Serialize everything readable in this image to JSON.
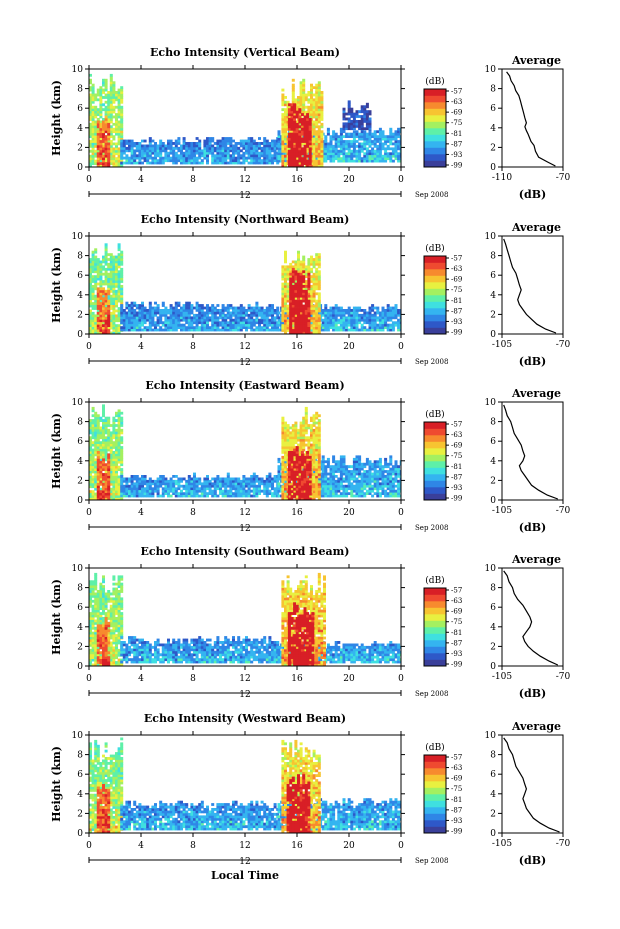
{
  "chart_data": [
    {
      "type": "heatmap",
      "title": "Echo Intensity (Vertical Beam)",
      "ylabel": "Height (km)",
      "xticks": [
        "0",
        "4",
        "8",
        "12",
        "16",
        "20",
        "0"
      ],
      "xlim": [
        0,
        24
      ],
      "yticks": [
        "0",
        "2",
        "4",
        "6",
        "8",
        "10"
      ],
      "ylim": [
        0,
        10
      ],
      "date_marker": "12",
      "date_label": "Sep 2008",
      "colorbar": {
        "label": "(dB)",
        "ticks": [
          "-57",
          "-63",
          "-69",
          "-75",
          "-81",
          "-87",
          "-93",
          "-99"
        ],
        "range": [
          -100,
          -55
        ]
      },
      "average": {
        "title": "Average",
        "xlabel": "(dB)",
        "xlim": [
          -110,
          -70
        ],
        "xticks": [
          "-110",
          "-70"
        ],
        "yticks": [
          "0",
          "2",
          "4",
          "6",
          "8",
          "10"
        ],
        "profile": [
          [
            -75,
            0.1
          ],
          [
            -80,
            0.5
          ],
          [
            -86,
            1.0
          ],
          [
            -88,
            1.6
          ],
          [
            -89,
            2.2
          ],
          [
            -91,
            2.6
          ],
          [
            -92,
            3.0
          ],
          [
            -93,
            3.4
          ],
          [
            -94,
            3.7
          ],
          [
            -95,
            4.1
          ],
          [
            -94,
            4.5
          ],
          [
            -95,
            5.0
          ],
          [
            -96,
            5.6
          ],
          [
            -97,
            6.2
          ],
          [
            -98,
            6.8
          ],
          [
            -99,
            7.3
          ],
          [
            -101,
            7.8
          ],
          [
            -102,
            8.3
          ],
          [
            -104,
            8.8
          ],
          [
            -105,
            9.3
          ],
          [
            -107,
            9.7
          ]
        ]
      },
      "features": [
        {
          "x0": 0,
          "x1": 2.6,
          "h0": 0,
          "h1": 9.6,
          "level": -78
        },
        {
          "x0": 0.6,
          "x1": 1.5,
          "h0": 0,
          "h1": 5.5,
          "level": -64
        },
        {
          "x0": 2.4,
          "x1": 14.5,
          "h0": 0.3,
          "h1": 3.0,
          "level": -92
        },
        {
          "x0": 14.5,
          "x1": 24,
          "h0": 0.5,
          "h1": 4.0,
          "level": -90
        },
        {
          "x0": 14.8,
          "x1": 17.8,
          "h0": 0,
          "h1": 9.2,
          "level": -72
        },
        {
          "x0": 15.3,
          "x1": 17.0,
          "h0": 0,
          "h1": 6.5,
          "level": -58
        },
        {
          "x0": 19.5,
          "x1": 21.5,
          "h0": 3.8,
          "h1": 7.0,
          "level": -97
        }
      ]
    },
    {
      "type": "heatmap",
      "title": "Echo Intensity (Northward Beam)",
      "ylabel": "Height (km)",
      "xticks": [
        "0",
        "4",
        "8",
        "12",
        "16",
        "20",
        "0"
      ],
      "xlim": [
        0,
        24
      ],
      "yticks": [
        "0",
        "2",
        "4",
        "6",
        "8",
        "10"
      ],
      "ylim": [
        0,
        10
      ],
      "date_marker": "12",
      "date_label": "Sep 2008",
      "colorbar": {
        "label": "(dB)",
        "ticks": [
          "-57",
          "-63",
          "-69",
          "-75",
          "-81",
          "-87",
          "-93",
          "-99"
        ],
        "range": [
          -100,
          -55
        ]
      },
      "average": {
        "title": "Average",
        "xlabel": "(dB)",
        "xlim": [
          -105,
          -70
        ],
        "xticks": [
          "-105",
          "-70"
        ],
        "yticks": [
          "0",
          "2",
          "4",
          "6",
          "8",
          "10"
        ],
        "profile": [
          [
            -74,
            0.1
          ],
          [
            -80,
            0.5
          ],
          [
            -85,
            1.0
          ],
          [
            -88,
            1.5
          ],
          [
            -91,
            2.0
          ],
          [
            -93,
            2.5
          ],
          [
            -95,
            3.0
          ],
          [
            -96,
            3.5
          ],
          [
            -95,
            4.0
          ],
          [
            -94,
            4.5
          ],
          [
            -95,
            5.0
          ],
          [
            -96,
            5.6
          ],
          [
            -97,
            6.2
          ],
          [
            -99,
            6.8
          ],
          [
            -100,
            7.4
          ],
          [
            -101,
            8.0
          ],
          [
            -102,
            8.6
          ],
          [
            -103,
            9.2
          ],
          [
            -104,
            9.7
          ]
        ]
      },
      "features": [
        {
          "x0": 0,
          "x1": 2.6,
          "h0": 0,
          "h1": 9.6,
          "level": -80
        },
        {
          "x0": 0.6,
          "x1": 1.5,
          "h0": 0,
          "h1": 5.0,
          "level": -65
        },
        {
          "x0": 2.4,
          "x1": 14.5,
          "h0": 0.3,
          "h1": 3.3,
          "level": -92
        },
        {
          "x0": 14.5,
          "x1": 24,
          "h0": 0.3,
          "h1": 3.0,
          "level": -91
        },
        {
          "x0": 14.8,
          "x1": 17.6,
          "h0": 0,
          "h1": 9.0,
          "level": -73
        },
        {
          "x0": 15.4,
          "x1": 16.9,
          "h0": 0,
          "h1": 6.8,
          "level": -58
        }
      ]
    },
    {
      "type": "heatmap",
      "title": "Echo Intensity (Eastward Beam)",
      "ylabel": "Height (km)",
      "xticks": [
        "0",
        "4",
        "8",
        "12",
        "16",
        "20",
        "0"
      ],
      "xlim": [
        0,
        24
      ],
      "yticks": [
        "0",
        "2",
        "4",
        "6",
        "8",
        "10"
      ],
      "ylim": [
        0,
        10
      ],
      "date_marker": "12",
      "date_label": "Sep 2008",
      "colorbar": {
        "label": "(dB)",
        "ticks": [
          "-57",
          "-63",
          "-69",
          "-75",
          "-81",
          "-87",
          "-93",
          "-99"
        ],
        "range": [
          -100,
          -55
        ]
      },
      "average": {
        "title": "Average",
        "xlabel": "(dB)",
        "xlim": [
          -105,
          -70
        ],
        "xticks": [
          "-105",
          "-70"
        ],
        "yticks": [
          "0",
          "2",
          "4",
          "6",
          "8",
          "10"
        ],
        "profile": [
          [
            -73,
            0.1
          ],
          [
            -79,
            0.5
          ],
          [
            -84,
            1.0
          ],
          [
            -88,
            1.5
          ],
          [
            -90,
            2.0
          ],
          [
            -92,
            2.5
          ],
          [
            -94,
            3.0
          ],
          [
            -95,
            3.5
          ],
          [
            -93,
            4.0
          ],
          [
            -92,
            4.5
          ],
          [
            -93,
            5.0
          ],
          [
            -94,
            5.6
          ],
          [
            -96,
            6.2
          ],
          [
            -98,
            6.8
          ],
          [
            -99,
            7.4
          ],
          [
            -100,
            8.0
          ],
          [
            -102,
            8.6
          ],
          [
            -103,
            9.2
          ],
          [
            -104,
            9.7
          ]
        ]
      },
      "features": [
        {
          "x0": 0,
          "x1": 2.6,
          "h0": 0,
          "h1": 9.6,
          "level": -79
        },
        {
          "x0": 0.6,
          "x1": 1.5,
          "h0": 0,
          "h1": 5.2,
          "level": -64
        },
        {
          "x0": 2.4,
          "x1": 14.5,
          "h0": 0.3,
          "h1": 2.6,
          "level": -91
        },
        {
          "x0": 14.5,
          "x1": 24,
          "h0": 0.3,
          "h1": 4.5,
          "level": -90
        },
        {
          "x0": 14.8,
          "x1": 17.6,
          "h0": 0,
          "h1": 9.5,
          "level": -72
        },
        {
          "x0": 15.3,
          "x1": 17.0,
          "h0": 0,
          "h1": 5.5,
          "level": -58
        }
      ]
    },
    {
      "type": "heatmap",
      "title": "Echo Intensity (Southward Beam)",
      "ylabel": "Height (km)",
      "xticks": [
        "0",
        "4",
        "8",
        "12",
        "16",
        "20",
        "0"
      ],
      "xlim": [
        0,
        24
      ],
      "yticks": [
        "0",
        "2",
        "4",
        "6",
        "8",
        "10"
      ],
      "ylim": [
        0,
        10
      ],
      "date_marker": "12",
      "date_label": "Sep 2008",
      "colorbar": {
        "label": "(dB)",
        "ticks": [
          "-57",
          "-63",
          "-69",
          "-75",
          "-81",
          "-87",
          "-93",
          "-99"
        ],
        "range": [
          -100,
          -55
        ]
      },
      "average": {
        "title": "Average",
        "xlabel": "(dB)",
        "xlim": [
          -105,
          -70
        ],
        "xticks": [
          "-105",
          "-70"
        ],
        "yticks": [
          "0",
          "2",
          "4",
          "6",
          "8",
          "10"
        ],
        "profile": [
          [
            -73,
            0.1
          ],
          [
            -78,
            0.5
          ],
          [
            -83,
            1.0
          ],
          [
            -87,
            1.5
          ],
          [
            -90,
            2.0
          ],
          [
            -92,
            2.5
          ],
          [
            -93,
            3.0
          ],
          [
            -91,
            3.5
          ],
          [
            -89,
            4.0
          ],
          [
            -88,
            4.5
          ],
          [
            -89,
            5.0
          ],
          [
            -91,
            5.6
          ],
          [
            -93,
            6.2
          ],
          [
            -96,
            6.8
          ],
          [
            -98,
            7.4
          ],
          [
            -99,
            8.0
          ],
          [
            -101,
            8.6
          ],
          [
            -102,
            9.2
          ],
          [
            -104,
            9.7
          ]
        ]
      },
      "features": [
        {
          "x0": 0,
          "x1": 2.6,
          "h0": 0,
          "h1": 9.6,
          "level": -79
        },
        {
          "x0": 0.6,
          "x1": 1.5,
          "h0": 0,
          "h1": 5.0,
          "level": -64
        },
        {
          "x0": 2.4,
          "x1": 14.5,
          "h0": 0.3,
          "h1": 3.0,
          "level": -91
        },
        {
          "x0": 14.5,
          "x1": 24,
          "h0": 0.3,
          "h1": 2.4,
          "level": -90
        },
        {
          "x0": 14.8,
          "x1": 18.0,
          "h0": 0,
          "h1": 9.5,
          "level": -71
        },
        {
          "x0": 15.3,
          "x1": 17.2,
          "h0": 0,
          "h1": 6.5,
          "level": -57
        }
      ]
    },
    {
      "type": "heatmap",
      "title": "Echo Intensity (Westward Beam)",
      "ylabel": "Height (km)",
      "xlabel": "Local Time",
      "xticks": [
        "0",
        "4",
        "8",
        "12",
        "16",
        "20",
        "0"
      ],
      "xlim": [
        0,
        24
      ],
      "yticks": [
        "0",
        "2",
        "4",
        "6",
        "8",
        "10"
      ],
      "ylim": [
        0,
        10
      ],
      "date_marker": "12",
      "date_label": "Sep 2008",
      "colorbar": {
        "label": "(dB)",
        "ticks": [
          "-57",
          "-63",
          "-69",
          "-75",
          "-81",
          "-87",
          "-93",
          "-99"
        ],
        "range": [
          -100,
          -55
        ]
      },
      "average": {
        "title": "Average",
        "xlabel": "(dB)",
        "xlim": [
          -105,
          -70
        ],
        "xticks": [
          "-105",
          "-70"
        ],
        "yticks": [
          "0",
          "2",
          "4",
          "6",
          "8",
          "10"
        ],
        "profile": [
          [
            -72,
            0.1
          ],
          [
            -78,
            0.5
          ],
          [
            -83,
            1.0
          ],
          [
            -87,
            1.5
          ],
          [
            -89,
            2.0
          ],
          [
            -91,
            2.5
          ],
          [
            -92,
            3.0
          ],
          [
            -93,
            3.5
          ],
          [
            -92,
            4.0
          ],
          [
            -91,
            4.5
          ],
          [
            -92,
            5.0
          ],
          [
            -93,
            5.6
          ],
          [
            -95,
            6.2
          ],
          [
            -97,
            6.8
          ],
          [
            -98,
            7.4
          ],
          [
            -99,
            8.0
          ],
          [
            -101,
            8.6
          ],
          [
            -102,
            9.2
          ],
          [
            -104,
            9.7
          ]
        ]
      },
      "features": [
        {
          "x0": 0,
          "x1": 2.6,
          "h0": 0,
          "h1": 9.6,
          "level": -79
        },
        {
          "x0": 0.6,
          "x1": 1.5,
          "h0": 0,
          "h1": 5.0,
          "level": -64
        },
        {
          "x0": 2.4,
          "x1": 14.5,
          "h0": 0.3,
          "h1": 3.2,
          "level": -91
        },
        {
          "x0": 14.5,
          "x1": 24,
          "h0": 0.3,
          "h1": 3.5,
          "level": -90
        },
        {
          "x0": 14.8,
          "x1": 17.6,
          "h0": 0,
          "h1": 9.5,
          "level": -72
        },
        {
          "x0": 15.2,
          "x1": 16.8,
          "h0": 0,
          "h1": 6.0,
          "level": -58
        }
      ]
    }
  ],
  "colormap": [
    "#3a3f9a",
    "#2e58c8",
    "#2f86e6",
    "#34b4f0",
    "#3fe0e0",
    "#5ef0a8",
    "#a4f060",
    "#e8f040",
    "#f7c431",
    "#f78a2e",
    "#ef4a30",
    "#d81f26"
  ]
}
